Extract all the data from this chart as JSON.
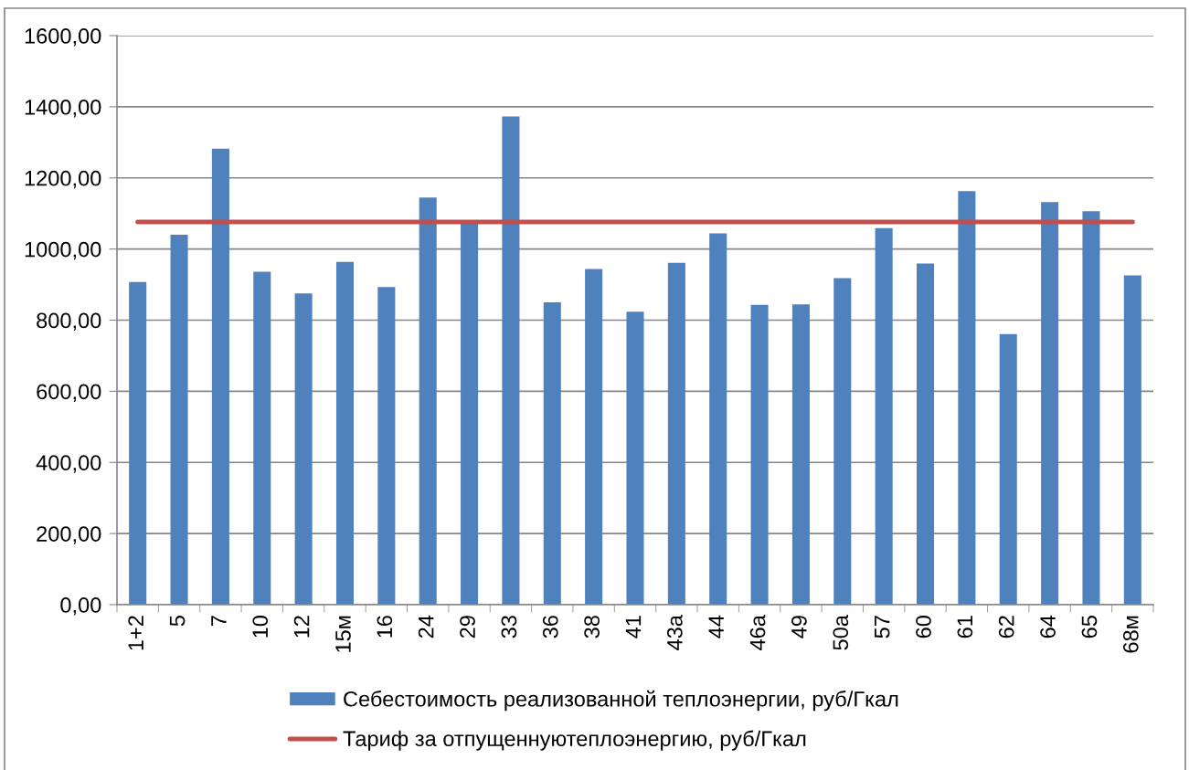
{
  "chart_data": {
    "type": "bar",
    "categories": [
      "1+2",
      "5",
      "7",
      "10",
      "12",
      "15м",
      "16",
      "24",
      "29",
      "33",
      "36",
      "38",
      "41",
      "43а",
      "44",
      "46а",
      "49",
      "50а",
      "57",
      "60",
      "61",
      "62",
      "64",
      "65",
      "68м"
    ],
    "series": [
      {
        "name": "Себестоимость реализованной теплоэнергии, руб/Гкал",
        "color": "#4f81bd",
        "values": [
          907,
          1040,
          1282,
          936,
          875,
          964,
          893,
          1145,
          1075,
          1373,
          850,
          944,
          824,
          961,
          1044,
          843,
          844,
          918,
          1059,
          959,
          1163,
          761,
          1132,
          1106,
          926
        ]
      },
      {
        "name": "Тариф за отпущеннуютеплоэнергию, руб/Гкал",
        "type": "line",
        "color": "#c0504d",
        "values": [
          1076,
          1076,
          1076,
          1076,
          1076,
          1076,
          1076,
          1076,
          1076,
          1076,
          1076,
          1076,
          1076,
          1076,
          1076,
          1076,
          1076,
          1076,
          1076,
          1076,
          1076,
          1076,
          1076,
          1076,
          1076
        ]
      }
    ],
    "ylim": [
      0,
      1600
    ],
    "yticks": [
      {
        "value": 0,
        "label": "0,00"
      },
      {
        "value": 200,
        "label": "200,00"
      },
      {
        "value": 400,
        "label": "400,00"
      },
      {
        "value": 600,
        "label": "600,00"
      },
      {
        "value": 800,
        "label": "800,00"
      },
      {
        "value": 1000,
        "label": "1000,00"
      },
      {
        "value": 1200,
        "label": "1200,00"
      },
      {
        "value": 1400,
        "label": "1400,00"
      },
      {
        "value": 1600,
        "label": "1600,00"
      }
    ],
    "grid": "y",
    "legend": "bottom"
  }
}
